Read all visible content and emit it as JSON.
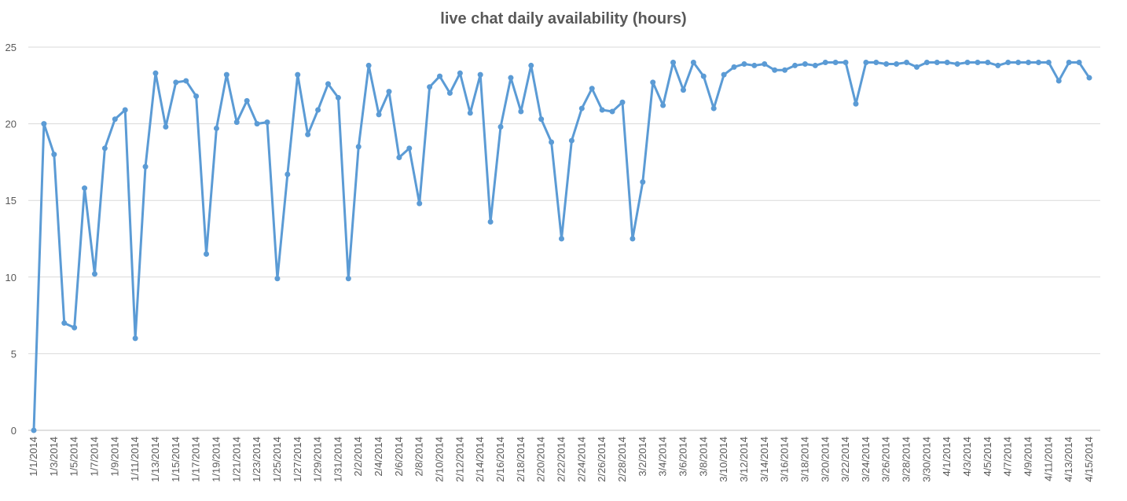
{
  "chart_data": {
    "type": "line",
    "title": "live chat daily availability (hours)",
    "xlabel": "",
    "ylabel": "",
    "ylim": [
      0,
      25
    ],
    "yticks": [
      0,
      5,
      10,
      15,
      20,
      25
    ],
    "grid": true,
    "legend": "none",
    "color": "#5b9bd5",
    "x": [
      "1/1/2014",
      "1/2/2014",
      "1/3/2014",
      "1/4/2014",
      "1/5/2014",
      "1/6/2014",
      "1/7/2014",
      "1/8/2014",
      "1/9/2014",
      "1/10/2014",
      "1/11/2014",
      "1/12/2014",
      "1/13/2014",
      "1/14/2014",
      "1/15/2014",
      "1/16/2014",
      "1/17/2014",
      "1/18/2014",
      "1/19/2014",
      "1/20/2014",
      "1/21/2014",
      "1/22/2014",
      "1/23/2014",
      "1/24/2014",
      "1/25/2014",
      "1/26/2014",
      "1/27/2014",
      "1/28/2014",
      "1/29/2014",
      "1/30/2014",
      "1/31/2014",
      "2/1/2014",
      "2/2/2014",
      "2/3/2014",
      "2/4/2014",
      "2/5/2014",
      "2/6/2014",
      "2/7/2014",
      "2/8/2014",
      "2/9/2014",
      "2/10/2014",
      "2/11/2014",
      "2/12/2014",
      "2/13/2014",
      "2/14/2014",
      "2/15/2014",
      "2/16/2014",
      "2/17/2014",
      "2/18/2014",
      "2/19/2014",
      "2/20/2014",
      "2/21/2014",
      "2/22/2014",
      "2/23/2014",
      "2/24/2014",
      "2/25/2014",
      "2/26/2014",
      "2/27/2014",
      "2/28/2014",
      "3/1/2014",
      "3/2/2014",
      "3/3/2014",
      "3/4/2014",
      "3/5/2014",
      "3/6/2014",
      "3/7/2014",
      "3/8/2014",
      "3/9/2014",
      "3/10/2014",
      "3/11/2014",
      "3/12/2014",
      "3/13/2014",
      "3/14/2014",
      "3/15/2014",
      "3/16/2014",
      "3/17/2014",
      "3/18/2014",
      "3/19/2014",
      "3/20/2014",
      "3/21/2014",
      "3/22/2014",
      "3/23/2014",
      "3/24/2014",
      "3/25/2014",
      "3/26/2014",
      "3/27/2014",
      "3/28/2014",
      "3/29/2014",
      "3/30/2014",
      "3/31/2014",
      "4/1/2014",
      "4/2/2014",
      "4/3/2014",
      "4/4/2014",
      "4/5/2014",
      "4/6/2014",
      "4/7/2014",
      "4/8/2014",
      "4/9/2014",
      "4/10/2014",
      "4/11/2014",
      "4/12/2014",
      "4/13/2014",
      "4/14/2014",
      "4/15/2014"
    ],
    "xticks": [
      "1/1/2014",
      "1/3/2014",
      "1/5/2014",
      "1/7/2014",
      "1/9/2014",
      "1/11/2014",
      "1/13/2014",
      "1/15/2014",
      "1/17/2014",
      "1/19/2014",
      "1/21/2014",
      "1/23/2014",
      "1/25/2014",
      "1/27/2014",
      "1/29/2014",
      "1/31/2014",
      "2/2/2014",
      "2/4/2014",
      "2/6/2014",
      "2/8/2014",
      "2/10/2014",
      "2/12/2014",
      "2/14/2014",
      "2/16/2014",
      "2/18/2014",
      "2/20/2014",
      "2/22/2014",
      "2/24/2014",
      "2/26/2014",
      "2/28/2014",
      "3/2/2014",
      "3/4/2014",
      "3/6/2014",
      "3/8/2014",
      "3/10/2014",
      "3/12/2014",
      "3/14/2014",
      "3/16/2014",
      "3/18/2014",
      "3/20/2014",
      "3/22/2014",
      "3/24/2014",
      "3/26/2014",
      "3/28/2014",
      "3/30/2014",
      "4/1/2014",
      "4/3/2014",
      "4/5/2014",
      "4/7/2014",
      "4/9/2014",
      "4/11/2014",
      "4/13/2014",
      "4/15/2014"
    ],
    "values": [
      0,
      20.0,
      18.0,
      7.0,
      6.7,
      15.8,
      10.2,
      18.4,
      20.3,
      20.9,
      6.0,
      17.2,
      23.3,
      19.8,
      22.7,
      22.8,
      21.8,
      11.5,
      19.7,
      23.2,
      20.1,
      21.5,
      20.0,
      20.1,
      9.9,
      16.7,
      23.2,
      19.3,
      20.9,
      22.6,
      21.7,
      9.9,
      18.5,
      23.8,
      20.6,
      22.1,
      17.8,
      18.4,
      14.8,
      22.4,
      23.1,
      22.0,
      23.3,
      20.7,
      23.2,
      13.6,
      19.8,
      23.0,
      20.8,
      23.8,
      20.3,
      18.8,
      12.5,
      18.9,
      21.0,
      22.3,
      20.9,
      20.8,
      21.4,
      12.5,
      16.2,
      22.7,
      21.2,
      24.0,
      22.2,
      24.0,
      23.1,
      21.0,
      23.2,
      23.7,
      23.9,
      23.8,
      23.9,
      23.5,
      23.5,
      23.8,
      23.9,
      23.8,
      24.0,
      24.0,
      24.0,
      21.3,
      24.0,
      24.0,
      23.9,
      23.9,
      24.0,
      23.7,
      24.0,
      24.0,
      24.0,
      23.9,
      24.0,
      24.0,
      24.0,
      23.8,
      24.0,
      24.0,
      24.0,
      24.0,
      24.0,
      22.8,
      24.0,
      24.0,
      23.0
    ]
  }
}
